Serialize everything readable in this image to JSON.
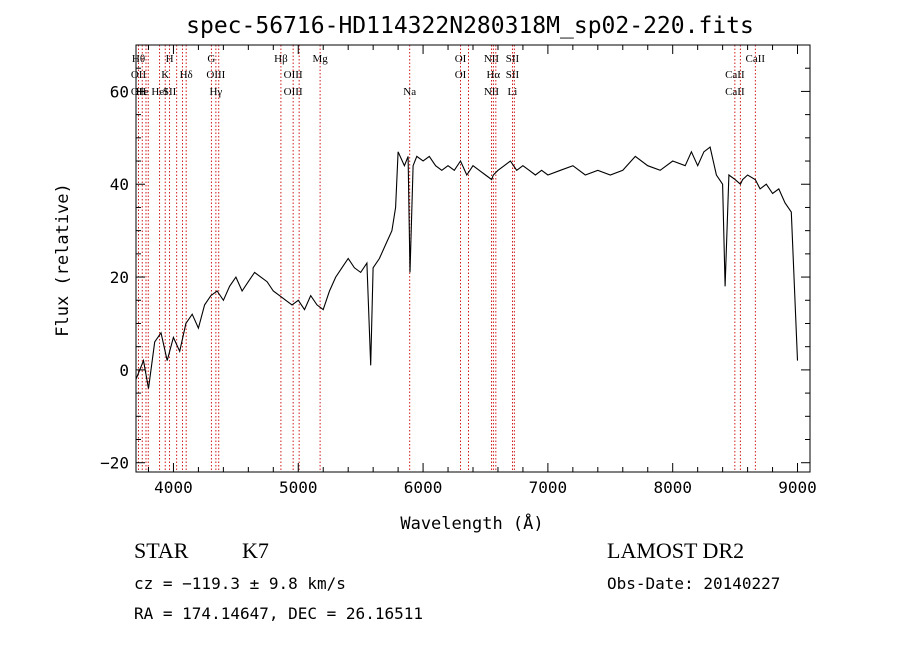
{
  "chart_data": {
    "type": "line",
    "title": "spec-56716-HD114322N280318M_sp02-220.fits",
    "xlabel": "Wavelength (Å)",
    "ylabel": "Flux (relative)",
    "xlim": [
      3700,
      9100
    ],
    "ylim": [
      -22,
      70
    ],
    "xticks": [
      4000,
      5000,
      6000,
      7000,
      8000,
      9000
    ],
    "yticks": [
      -20,
      0,
      20,
      40,
      60
    ],
    "grid": false,
    "series": [
      {
        "values_x": [
          3700,
          3760,
          3800,
          3850,
          3900,
          3950,
          4000,
          4050,
          4100,
          4150,
          4200,
          4250,
          4300,
          4350,
          4400,
          4450,
          4500,
          4550,
          4600,
          4650,
          4700,
          4750,
          4800,
          4850,
          4900,
          4950,
          5000,
          5050,
          5100,
          5150,
          5200,
          5250,
          5300,
          5350,
          5400,
          5450,
          5500,
          5550,
          5580,
          5600,
          5650,
          5700,
          5750,
          5780,
          5800,
          5850,
          5880,
          5895,
          5920,
          5950,
          6000,
          6050,
          6100,
          6150,
          6200,
          6250,
          6300,
          6350,
          6400,
          6450,
          6500,
          6550,
          6563,
          6600,
          6650,
          6700,
          6750,
          6800,
          6850,
          6900,
          6950,
          7000,
          7100,
          7200,
          7300,
          7400,
          7500,
          7600,
          7700,
          7800,
          7900,
          8000,
          8100,
          8150,
          8200,
          8250,
          8300,
          8350,
          8400,
          8420,
          8450,
          8500,
          8542,
          8560,
          8600,
          8662,
          8700,
          8750,
          8800,
          8850,
          8900,
          8950,
          9000
        ],
        "values_y": [
          -2,
          2,
          -4,
          6,
          8,
          2,
          7,
          4,
          10,
          12,
          9,
          14,
          16,
          17,
          15,
          18,
          20,
          17,
          19,
          21,
          20,
          19,
          17,
          16,
          15,
          14,
          15,
          13,
          16,
          14,
          13,
          17,
          20,
          22,
          24,
          22,
          21,
          23,
          1,
          22,
          24,
          27,
          30,
          35,
          47,
          44,
          46,
          21,
          44,
          46,
          45,
          46,
          44,
          43,
          44,
          43,
          45,
          42,
          44,
          43,
          42,
          41,
          42,
          43,
          44,
          45,
          43,
          44,
          43,
          42,
          43,
          42,
          43,
          44,
          42,
          43,
          42,
          43,
          46,
          44,
          43,
          45,
          44,
          47,
          44,
          47,
          48,
          42,
          40,
          18,
          42,
          41,
          40,
          41,
          42,
          41,
          39,
          40,
          38,
          39,
          36,
          34,
          2
        ]
      }
    ],
    "lines": [
      {
        "x": 3720,
        "labels": [
          "Hθ",
          "OII",
          "OII"
        ]
      },
      {
        "x": 3750,
        "labels": [
          "",
          "",
          "He"
        ]
      },
      {
        "x": 3780,
        "labels": [
          "",
          "",
          ""
        ]
      },
      {
        "x": 3798,
        "labels": [
          "",
          "",
          ""
        ]
      },
      {
        "x": 3889,
        "labels": [
          "",
          "",
          "HeI"
        ]
      },
      {
        "x": 3934,
        "labels": [
          "",
          "K",
          ""
        ]
      },
      {
        "x": 3969,
        "labels": [
          "H",
          "",
          "SII"
        ]
      },
      {
        "x": 4026,
        "labels": [
          "",
          "",
          ""
        ]
      },
      {
        "x": 4072,
        "labels": [
          "",
          "",
          ""
        ]
      },
      {
        "x": 4102,
        "labels": [
          "",
          "Hδ",
          ""
        ]
      },
      {
        "x": 4304,
        "labels": [
          "G",
          "",
          ""
        ]
      },
      {
        "x": 4340,
        "labels": [
          "",
          "OIII",
          "Hγ"
        ]
      },
      {
        "x": 4363,
        "labels": [
          "",
          "",
          ""
        ]
      },
      {
        "x": 4861,
        "labels": [
          "Hβ",
          "",
          ""
        ]
      },
      {
        "x": 4959,
        "labels": [
          "",
          "OIII",
          "OIII"
        ]
      },
      {
        "x": 5007,
        "labels": [
          "",
          "",
          ""
        ]
      },
      {
        "x": 5175,
        "labels": [
          "Mg",
          "",
          ""
        ]
      },
      {
        "x": 5893,
        "labels": [
          "",
          "",
          "Na"
        ]
      },
      {
        "x": 6300,
        "labels": [
          "OI",
          "OI",
          ""
        ]
      },
      {
        "x": 6364,
        "labels": [
          "",
          "",
          ""
        ]
      },
      {
        "x": 6548,
        "labels": [
          "NII",
          "",
          "NII"
        ]
      },
      {
        "x": 6563,
        "labels": [
          "",
          "Hα",
          ""
        ]
      },
      {
        "x": 6583,
        "labels": [
          "",
          "",
          ""
        ]
      },
      {
        "x": 6716,
        "labels": [
          "SII",
          "SII",
          "Li"
        ]
      },
      {
        "x": 6731,
        "labels": [
          "",
          "",
          ""
        ]
      },
      {
        "x": 8498,
        "labels": [
          "",
          "CaII",
          "CaII"
        ]
      },
      {
        "x": 8542,
        "labels": [
          "",
          "",
          ""
        ]
      },
      {
        "x": 8662,
        "labels": [
          "CaII",
          "",
          ""
        ]
      }
    ],
    "line_color": "#cc0000"
  },
  "info": {
    "object_type": "STAR",
    "subclass": "K7",
    "survey": "LAMOST DR2",
    "redshift": "cz = −119.3 ± 9.8 km/s",
    "obs_date": "Obs-Date: 20140227",
    "coords": "RA = 174.14647, DEC =  26.16511"
  }
}
